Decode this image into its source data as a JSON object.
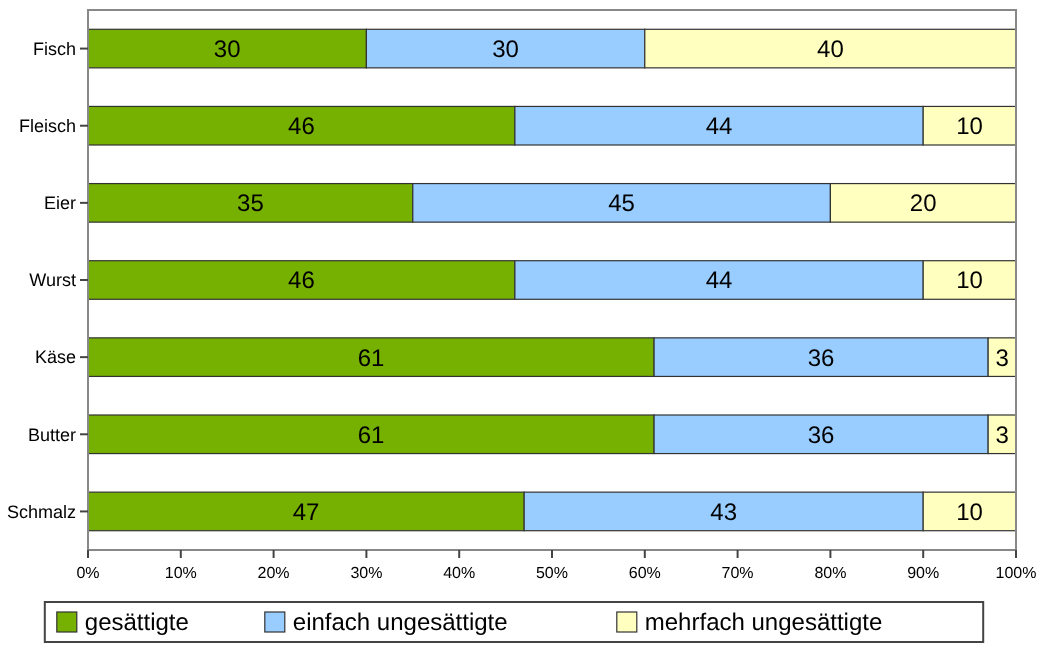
{
  "chart_data": {
    "type": "bar",
    "orientation": "horizontal",
    "stacked": true,
    "categories": [
      "Fisch",
      "Fleisch",
      "Eier",
      "Wurst",
      "Käse",
      "Butter",
      "Schmalz"
    ],
    "series": [
      {
        "name": "gesättigte",
        "color": "#76b000",
        "values": [
          30,
          46,
          35,
          46,
          61,
          61,
          47
        ]
      },
      {
        "name": "einfach ungesättigte",
        "color": "#99ccff",
        "values": [
          30,
          44,
          45,
          44,
          36,
          36,
          43
        ]
      },
      {
        "name": "mehrfach ungesättigte",
        "color": "#ffffc0",
        "values": [
          40,
          10,
          20,
          10,
          3,
          3,
          10
        ]
      }
    ],
    "xlim": [
      0,
      100
    ],
    "xticks": [
      {
        "value": 0,
        "label": "0%"
      },
      {
        "value": 10,
        "label": "10%"
      },
      {
        "value": 20,
        "label": "20%"
      },
      {
        "value": 30,
        "label": "30%"
      },
      {
        "value": 40,
        "label": "40%"
      },
      {
        "value": 50,
        "label": "50%"
      },
      {
        "value": 60,
        "label": "60%"
      },
      {
        "value": 70,
        "label": "70%"
      },
      {
        "value": 80,
        "label": "80%"
      },
      {
        "value": 90,
        "label": "90%"
      },
      {
        "value": 100,
        "label": "100%"
      }
    ],
    "data_labels": true,
    "grid": false,
    "legend": "bottom"
  }
}
